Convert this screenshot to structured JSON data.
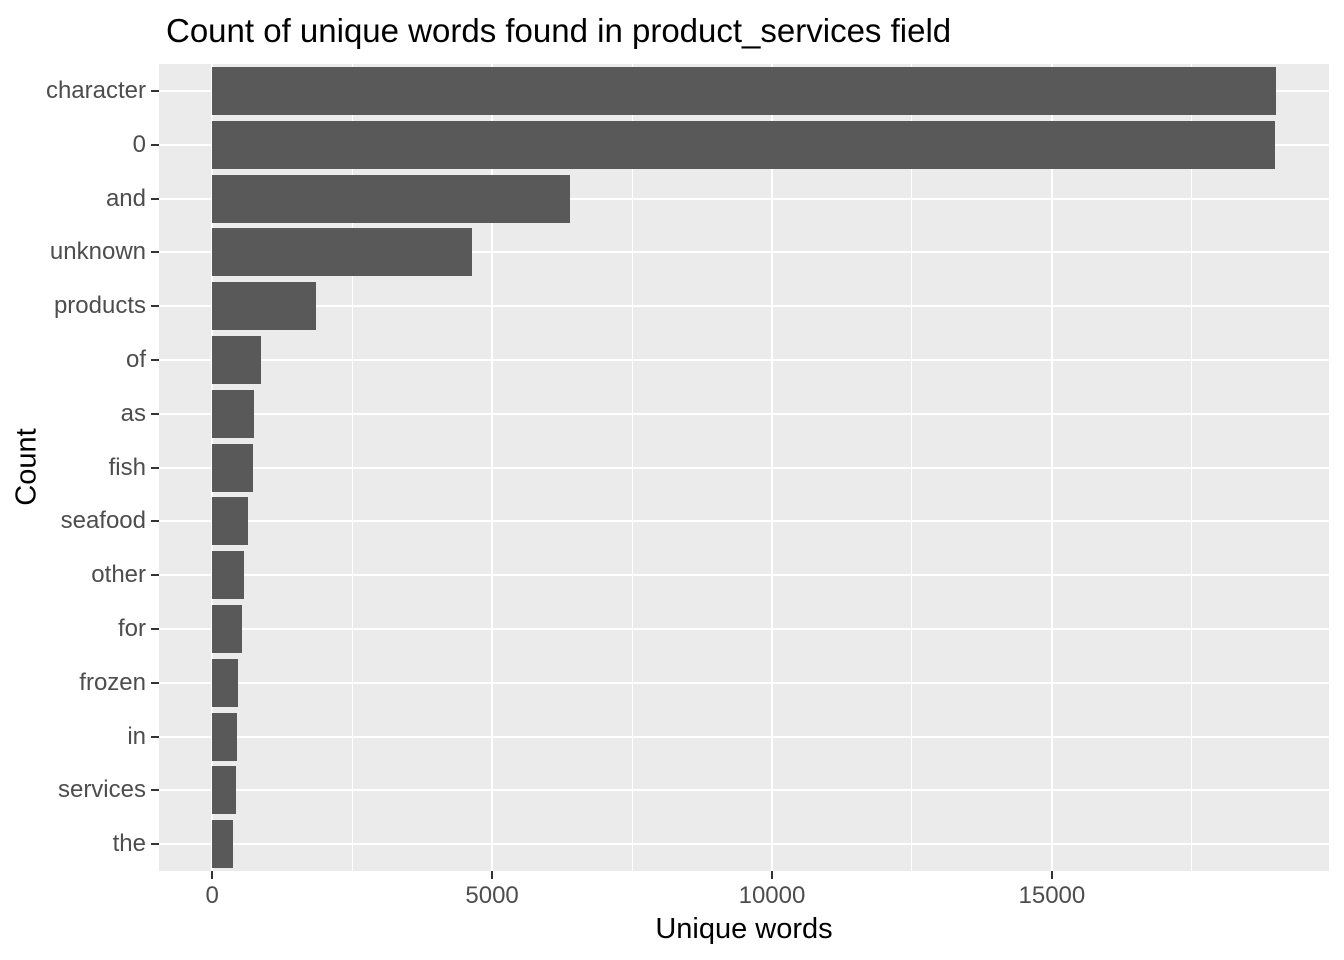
{
  "chart_data": {
    "type": "bar",
    "orientation": "horizontal",
    "title": "Count of unique words found in product_services field",
    "xlabel": "Unique words",
    "ylabel": "Count",
    "categories": [
      "character",
      "0",
      "and",
      "unknown",
      "products",
      "of",
      "as",
      "fish",
      "seafood",
      "other",
      "for",
      "frozen",
      "in",
      "services",
      "the"
    ],
    "values": [
      19000,
      18980,
      6400,
      4650,
      1860,
      875,
      750,
      730,
      640,
      570,
      535,
      465,
      445,
      430,
      375
    ],
    "x_ticks": [
      0,
      5000,
      10000,
      15000
    ],
    "x_tick_labels": [
      "0",
      "5000",
      "10000",
      "15000"
    ],
    "x_minor_ticks": [
      2500,
      7500,
      12500,
      17500
    ],
    "xlim": [
      -950,
      19950
    ],
    "bar_width_fraction": 0.9,
    "grid": "on",
    "legend": "none",
    "colors": {
      "bar_fill": "#595959",
      "panel_background": "#EBEBEB",
      "gridline": "#FFFFFF",
      "axis_text": "#4D4D4D",
      "tick_mark": "#333333",
      "title_text": "#000000",
      "figure_background": "#FFFFFF"
    }
  }
}
